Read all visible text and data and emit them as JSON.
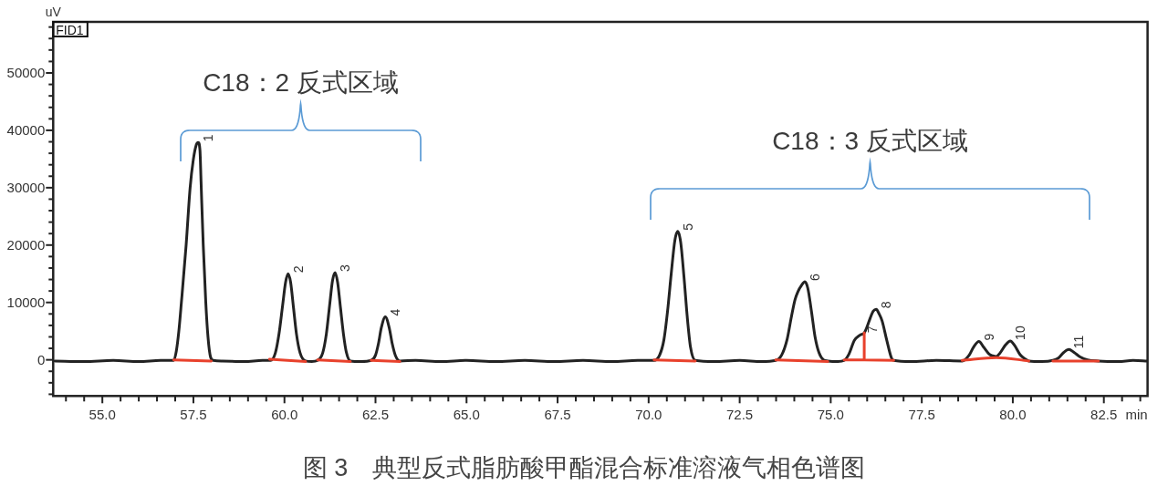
{
  "chart_data": {
    "type": "line",
    "title": "图 3　典型反式脂肪酸甲酯混合标准溶液气相色谱图",
    "xlabel": "min",
    "ylabel": "uV",
    "xlim": [
      53.65,
      83.7
    ],
    "ylim": [
      -6300,
      58900
    ],
    "xticks": [
      {
        "value": 54,
        "label": null
      },
      {
        "value": 54.5,
        "label": null
      },
      {
        "value": 55,
        "label": "55.0"
      },
      {
        "value": 55.5,
        "label": null
      },
      {
        "value": 56,
        "label": null
      },
      {
        "value": 56.5,
        "label": null
      },
      {
        "value": 57,
        "label": null
      },
      {
        "value": 57.5,
        "label": "57.5"
      },
      {
        "value": 58,
        "label": null
      },
      {
        "value": 58.5,
        "label": null
      },
      {
        "value": 59,
        "label": null
      },
      {
        "value": 59.5,
        "label": null
      },
      {
        "value": 60,
        "label": "60.0"
      },
      {
        "value": 60.5,
        "label": null
      },
      {
        "value": 61,
        "label": null
      },
      {
        "value": 61.5,
        "label": null
      },
      {
        "value": 62,
        "label": null
      },
      {
        "value": 62.5,
        "label": "62.5"
      },
      {
        "value": 63,
        "label": null
      },
      {
        "value": 63.5,
        "label": null
      },
      {
        "value": 64,
        "label": null
      },
      {
        "value": 64.5,
        "label": null
      },
      {
        "value": 65,
        "label": "65.0"
      },
      {
        "value": 65.5,
        "label": null
      },
      {
        "value": 66,
        "label": null
      },
      {
        "value": 66.5,
        "label": null
      },
      {
        "value": 67,
        "label": null
      },
      {
        "value": 67.5,
        "label": "67.5"
      },
      {
        "value": 68,
        "label": null
      },
      {
        "value": 68.5,
        "label": null
      },
      {
        "value": 69,
        "label": null
      },
      {
        "value": 69.5,
        "label": null
      },
      {
        "value": 70,
        "label": "70.0"
      },
      {
        "value": 70.5,
        "label": null
      },
      {
        "value": 71,
        "label": null
      },
      {
        "value": 71.5,
        "label": null
      },
      {
        "value": 72,
        "label": null
      },
      {
        "value": 72.5,
        "label": "72.5"
      },
      {
        "value": 73,
        "label": null
      },
      {
        "value": 73.5,
        "label": null
      },
      {
        "value": 74,
        "label": null
      },
      {
        "value": 74.5,
        "label": null
      },
      {
        "value": 75,
        "label": "75.0"
      },
      {
        "value": 75.5,
        "label": null
      },
      {
        "value": 76,
        "label": null
      },
      {
        "value": 76.5,
        "label": null
      },
      {
        "value": 77,
        "label": null
      },
      {
        "value": 77.5,
        "label": "77.5"
      },
      {
        "value": 78,
        "label": null
      },
      {
        "value": 78.5,
        "label": null
      },
      {
        "value": 79,
        "label": null
      },
      {
        "value": 79.5,
        "label": null
      },
      {
        "value": 80,
        "label": "80.0"
      },
      {
        "value": 80.5,
        "label": null
      },
      {
        "value": 81,
        "label": null
      },
      {
        "value": 81.5,
        "label": null
      },
      {
        "value": 82,
        "label": null
      },
      {
        "value": 82.5,
        "label": "82.5"
      },
      {
        "value": 83,
        "label": null
      },
      {
        "value": 83.5,
        "label": null
      }
    ],
    "yticks": [
      {
        "value": -6000,
        "label": null
      },
      {
        "value": -4000,
        "label": null
      },
      {
        "value": -2000,
        "label": null
      },
      0,
      {
        "value": 2000,
        "label": null
      },
      {
        "value": 4000,
        "label": null
      },
      {
        "value": 6000,
        "label": null
      },
      {
        "value": 8000,
        "label": null
      },
      10000,
      {
        "value": 12000,
        "label": null
      },
      {
        "value": 14000,
        "label": null
      },
      {
        "value": 16000,
        "label": null
      },
      {
        "value": 18000,
        "label": null
      },
      20000,
      {
        "value": 22000,
        "label": null
      },
      {
        "value": 24000,
        "label": null
      },
      {
        "value": 26000,
        "label": null
      },
      {
        "value": 28000,
        "label": null
      },
      30000,
      {
        "value": 32000,
        "label": null
      },
      {
        "value": 34000,
        "label": null
      },
      {
        "value": 36000,
        "label": null
      },
      {
        "value": 38000,
        "label": null
      },
      40000,
      {
        "value": 42000,
        "label": null
      },
      {
        "value": 44000,
        "label": null
      },
      {
        "value": 46000,
        "label": null
      },
      {
        "value": 48000,
        "label": null
      },
      50000,
      {
        "value": 52000,
        "label": null
      },
      {
        "value": 54000,
        "label": null
      },
      {
        "value": 56000,
        "label": null
      },
      {
        "value": 58000,
        "label": null
      }
    ],
    "series": [
      {
        "color": "#222222",
        "x": [
          53.7,
          54.5,
          55.3,
          56.0,
          56.6,
          56.96,
          57.03,
          57.1,
          57.17,
          57.3,
          57.41,
          57.5,
          57.58,
          57.63,
          57.68,
          57.71,
          57.77,
          57.84,
          57.9,
          57.97,
          58.05,
          58.3,
          58.9,
          59.4,
          59.62,
          59.75,
          59.85,
          59.95,
          60.03,
          60.1,
          60.17,
          60.25,
          60.33,
          60.43,
          60.58,
          60.75,
          60.91,
          61.05,
          61.15,
          61.24,
          61.32,
          61.39,
          61.46,
          61.54,
          61.62,
          61.7,
          61.81,
          62.1,
          62.38,
          62.5,
          62.58,
          62.66,
          62.77,
          62.88,
          62.96,
          63.05,
          63.17,
          63.6,
          64.3,
          65.0,
          65.8,
          66.6,
          67.4,
          68.2,
          69.0,
          69.7,
          70.15,
          70.3,
          70.42,
          70.52,
          70.62,
          70.72,
          70.8,
          70.88,
          70.97,
          71.06,
          71.15,
          71.28,
          71.8,
          72.5,
          73.1,
          73.49,
          73.65,
          73.8,
          73.92,
          74.02,
          74.1,
          74.2,
          74.29,
          74.37,
          74.47,
          74.57,
          74.68,
          74.8,
          74.92,
          75.2,
          75.37,
          75.5,
          75.65,
          75.8,
          75.92,
          76.0,
          76.08,
          76.17,
          76.25,
          76.33,
          76.41,
          76.54,
          76.67,
          76.73,
          77.2,
          77.9,
          78.61,
          78.8,
          78.92,
          79.07,
          79.2,
          79.35,
          79.45,
          79.55,
          79.65,
          79.8,
          79.93,
          80.05,
          80.2,
          80.35,
          80.44,
          80.8,
          81.1,
          81.25,
          81.4,
          81.54,
          81.68,
          81.85,
          82.05,
          82.35,
          82.9,
          83.3,
          83.7
        ],
        "values": [
          -200,
          -300,
          -100,
          -300,
          -100,
          -100,
          1500,
          5000,
          10000,
          20000,
          30000,
          35000,
          37500,
          37900,
          36500,
          31000,
          20000,
          10000,
          4000,
          500,
          -100,
          -200,
          -300,
          -100,
          -100,
          1200,
          4500,
          9500,
          13500,
          15000,
          13500,
          9000,
          4500,
          1200,
          -200,
          -300,
          -100,
          1200,
          4500,
          9500,
          13800,
          15200,
          13500,
          9000,
          4500,
          1300,
          -200,
          -300,
          -100,
          800,
          2800,
          5600,
          7500,
          5500,
          2800,
          700,
          -200,
          -100,
          -300,
          -100,
          -300,
          -100,
          -300,
          -100,
          -300,
          -100,
          -100,
          800,
          3500,
          8500,
          15000,
          20800,
          22400,
          20500,
          14500,
          7500,
          2200,
          -100,
          -300,
          -100,
          -300,
          -100,
          800,
          3500,
          7500,
          10500,
          11900,
          13000,
          13600,
          12500,
          8500,
          4000,
          1200,
          0,
          -200,
          -300,
          -100,
          1000,
          3400,
          4300,
          4700,
          5800,
          7200,
          8500,
          8800,
          8000,
          6800,
          3400,
          300,
          -100,
          -300,
          -100,
          -200,
          800,
          2200,
          3200,
          2200,
          1000,
          700,
          600,
          1200,
          2600,
          3300,
          2500,
          900,
          100,
          -200,
          -300,
          -100,
          300,
          1300,
          1800,
          1300,
          500,
          0,
          -200,
          -300,
          -100,
          -200
        ]
      },
      {
        "color": "#e8412c",
        "x": [
          56.96,
          57.99,
          null,
          59.59,
          60.58,
          null,
          60.91,
          61.81,
          null,
          62.38,
          63.17,
          null,
          70.15,
          71.28,
          null,
          73.49,
          74.92,
          null,
          75.37,
          75.92,
          75.92,
          75.92,
          76.73,
          null,
          78.61,
          79.55,
          80.44,
          null,
          81.1,
          82.35
        ],
        "values": [
          0,
          -200,
          null,
          100,
          -300,
          null,
          0,
          -300,
          null,
          -100,
          -300,
          null,
          0,
          -200,
          null,
          0,
          -300,
          null,
          0,
          0,
          4700,
          0,
          -100,
          null,
          -100,
          400,
          -200,
          null,
          -200,
          -200
        ]
      }
    ],
    "annotations": [
      "FID1",
      "C18：2 反式区域",
      "C18：3 反式区域",
      {
        "text": "1",
        "x": 57.63,
        "y": 37900
      },
      {
        "text": "2",
        "x": 60.1,
        "y": 15000
      },
      {
        "text": "3",
        "x": 61.39,
        "y": 15200
      },
      {
        "text": "4",
        "x": 62.77,
        "y": 7500
      },
      {
        "text": "5",
        "x": 70.8,
        "y": 22400
      },
      {
        "text": "6",
        "x": 74.29,
        "y": 13600
      },
      {
        "text": "7",
        "x": 75.87,
        "y": 4500
      },
      {
        "text": "8",
        "x": 76.25,
        "y": 8800
      },
      {
        "text": "9",
        "x": 79.07,
        "y": 3200
      },
      {
        "text": "10",
        "x": 79.93,
        "y": 3300
      },
      {
        "text": "11",
        "x": 81.54,
        "y": 1800
      }
    ]
  }
}
